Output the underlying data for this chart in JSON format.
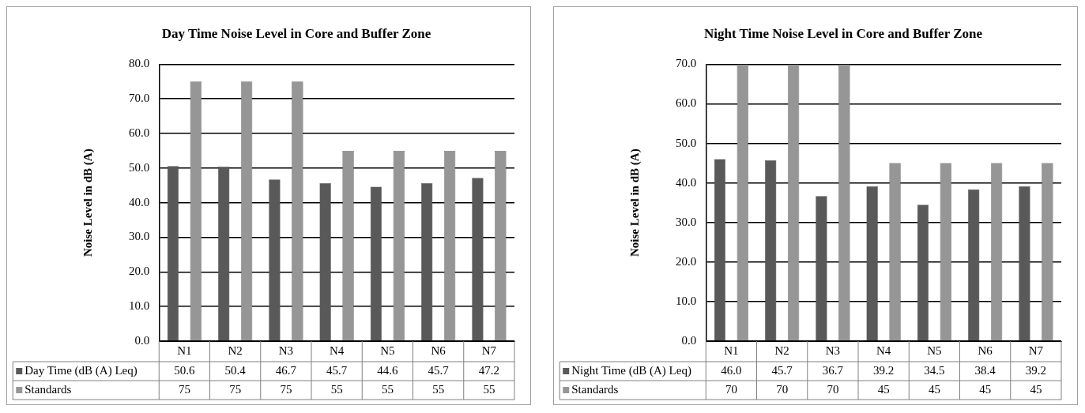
{
  "chart_data": [
    {
      "type": "bar",
      "title": "Day Time Noise Level in Core and Buffer Zone",
      "ylabel": "Noise Level in dB (A)",
      "categories": [
        "N1",
        "N2",
        "N3",
        "N4",
        "N5",
        "N6",
        "N7"
      ],
      "series": [
        {
          "name": "Day Time (dB (A) Leq)",
          "color": "#595959",
          "values": [
            50.6,
            50.4,
            46.7,
            45.7,
            44.6,
            45.7,
            47.2
          ],
          "value_labels": [
            "50.6",
            "50.4",
            "46.7",
            "45.7",
            "44.6",
            "45.7",
            "47.2"
          ]
        },
        {
          "name": "Standards",
          "color": "#969696",
          "values": [
            75,
            75,
            75,
            55,
            55,
            55,
            55
          ],
          "value_labels": [
            "75",
            "75",
            "75",
            "55",
            "55",
            "55",
            "55"
          ]
        }
      ],
      "ylim": [
        0,
        80
      ],
      "yticks": [
        {
          "value": 0,
          "label": "0.0"
        },
        {
          "value": 10,
          "label": "10.0"
        },
        {
          "value": 20,
          "label": "20.0"
        },
        {
          "value": 30,
          "label": "30.0"
        },
        {
          "value": 40,
          "label": "40.0"
        },
        {
          "value": 50,
          "label": "50.0"
        },
        {
          "value": 60,
          "label": "60.0"
        },
        {
          "value": 70,
          "label": "70.0"
        },
        {
          "value": 80,
          "label": "80.0"
        }
      ],
      "grid": "y",
      "legend": "bottom"
    },
    {
      "type": "bar",
      "title": "Night Time Noise Level in Core and Buffer Zone",
      "ylabel": "Noise Level in dB (A)",
      "categories": [
        "N1",
        "N2",
        "N3",
        "N4",
        "N5",
        "N6",
        "N7"
      ],
      "series": [
        {
          "name": "Night Time (dB (A) Leq)",
          "color": "#595959",
          "values": [
            46.0,
            45.7,
            36.7,
            39.2,
            34.5,
            38.4,
            39.2
          ],
          "value_labels": [
            "46.0",
            "45.7",
            "36.7",
            "39.2",
            "34.5",
            "38.4",
            "39.2"
          ]
        },
        {
          "name": "Standards",
          "color": "#969696",
          "values": [
            70,
            70,
            70,
            45,
            45,
            45,
            45
          ],
          "value_labels": [
            "70",
            "70",
            "70",
            "45",
            "45",
            "45",
            "45"
          ]
        }
      ],
      "ylim": [
        0,
        70
      ],
      "yticks": [
        {
          "value": 0,
          "label": "0.0"
        },
        {
          "value": 10,
          "label": "10.0"
        },
        {
          "value": 20,
          "label": "20.0"
        },
        {
          "value": 30,
          "label": "30.0"
        },
        {
          "value": 40,
          "label": "40.0"
        },
        {
          "value": 50,
          "label": "50.0"
        },
        {
          "value": 60,
          "label": "60.0"
        },
        {
          "value": 70,
          "label": "70.0"
        }
      ],
      "grid": "y",
      "legend": "bottom"
    }
  ]
}
